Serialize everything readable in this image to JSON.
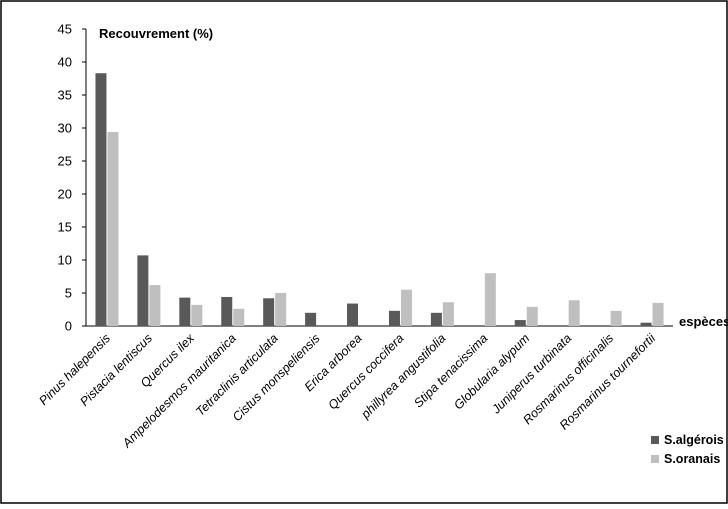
{
  "chart_data": {
    "type": "bar",
    "ylabel": "Recouvrement (%)",
    "xlabel": "espèces",
    "ylim": [
      0,
      45
    ],
    "yticks": [
      0,
      5,
      10,
      15,
      20,
      25,
      30,
      35,
      40,
      45
    ],
    "grid": false,
    "legend_position": "bottom-right",
    "categories": [
      "Pinus halepensis",
      "Pistacia lentiscus",
      "Quercus ilex",
      "Ampelodesmos mauritanica",
      "Tetraclinis articulata",
      "Cistus monspeliensis",
      "Erica arborea",
      "Quercus coccifera",
      "phillyrea angustifolia",
      "Stipa tenacissima",
      "Globularia alypum",
      "Juniperus turbinata",
      "Rosmarinus officinalis",
      "Rosmarinus tournefortii"
    ],
    "series": [
      {
        "name": "S.algérois",
        "color": "#595959",
        "values": [
          38.3,
          10.7,
          4.3,
          4.4,
          4.2,
          2.0,
          3.4,
          2.3,
          2.0,
          0,
          0.9,
          0,
          0,
          0.5
        ]
      },
      {
        "name": "S.oranais",
        "color": "#bfbfbf",
        "values": [
          29.4,
          6.2,
          3.2,
          2.6,
          5.0,
          0,
          0,
          5.5,
          3.6,
          8.0,
          2.9,
          3.9,
          2.3,
          3.5
        ]
      }
    ]
  }
}
